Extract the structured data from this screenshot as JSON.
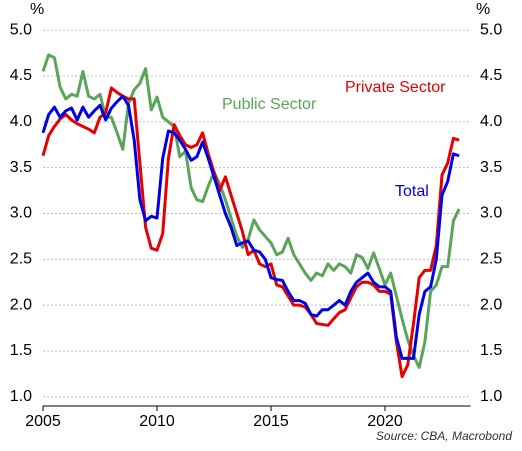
{
  "chart_data": {
    "type": "line",
    "y_label": "%",
    "y2_label": "%",
    "source": "Source: CBA, Macrobond",
    "x": [
      2005,
      2005.25,
      2005.5,
      2005.75,
      2006,
      2006.25,
      2006.5,
      2006.75,
      2007,
      2007.25,
      2007.5,
      2007.75,
      2008,
      2008.25,
      2008.5,
      2008.75,
      2009,
      2009.25,
      2009.5,
      2009.75,
      2010,
      2010.25,
      2010.5,
      2010.75,
      2011,
      2011.25,
      2011.5,
      2011.75,
      2012,
      2012.25,
      2012.5,
      2012.75,
      2013,
      2013.25,
      2013.5,
      2013.75,
      2014,
      2014.25,
      2014.5,
      2014.75,
      2015,
      2015.25,
      2015.5,
      2015.75,
      2016,
      2016.25,
      2016.5,
      2016.75,
      2017,
      2017.25,
      2017.5,
      2017.75,
      2018,
      2018.25,
      2018.5,
      2018.75,
      2019,
      2019.25,
      2019.5,
      2019.75,
      2020,
      2020.25,
      2020.5,
      2020.75,
      2021,
      2021.25,
      2021.5,
      2021.75,
      2022,
      2022.25,
      2022.5,
      2022.75,
      2023,
      2023.25
    ],
    "series": [
      {
        "name": "Public Sector",
        "color": "#5aa55a",
        "values": [
          4.55,
          4.73,
          4.7,
          4.38,
          4.25,
          4.3,
          4.28,
          4.55,
          4.28,
          4.25,
          4.3,
          4.05,
          4.05,
          3.88,
          3.7,
          4.2,
          4.35,
          4.42,
          4.58,
          4.13,
          4.27,
          4.05,
          4.0,
          3.95,
          3.62,
          3.68,
          3.28,
          3.15,
          3.13,
          3.3,
          3.45,
          3.32,
          3.15,
          2.95,
          2.75,
          2.63,
          2.72,
          2.93,
          2.82,
          2.75,
          2.68,
          2.55,
          2.58,
          2.73,
          2.55,
          2.45,
          2.35,
          2.27,
          2.35,
          2.32,
          2.45,
          2.38,
          2.45,
          2.42,
          2.35,
          2.55,
          2.52,
          2.4,
          2.57,
          2.4,
          2.22,
          2.35,
          2.1,
          1.85,
          1.62,
          1.45,
          1.32,
          1.6,
          2.15,
          2.22,
          2.42,
          2.42,
          2.92,
          3.05
        ]
      },
      {
        "name": "Private Sector",
        "color": "#e60000",
        "values": [
          3.63,
          3.85,
          3.95,
          4.03,
          4.08,
          4.02,
          3.98,
          3.95,
          3.92,
          3.88,
          4.05,
          4.1,
          4.37,
          4.32,
          4.28,
          4.25,
          4.25,
          3.55,
          2.85,
          2.62,
          2.6,
          2.78,
          3.6,
          3.97,
          3.85,
          3.75,
          3.72,
          3.75,
          3.88,
          3.65,
          3.45,
          3.25,
          3.4,
          3.2,
          3.0,
          2.8,
          2.55,
          2.6,
          2.45,
          2.42,
          2.45,
          2.22,
          2.2,
          2.1,
          2.0,
          2.0,
          1.98,
          1.9,
          1.8,
          1.79,
          1.78,
          1.85,
          1.92,
          1.95,
          2.08,
          2.2,
          2.25,
          2.25,
          2.22,
          2.15,
          2.15,
          2.12,
          1.6,
          1.22,
          1.35,
          1.8,
          2.3,
          2.38,
          2.38,
          2.65,
          3.42,
          3.55,
          3.82,
          3.8
        ]
      },
      {
        "name": "Total",
        "color": "#0000e6",
        "values": [
          3.88,
          4.08,
          4.16,
          4.05,
          4.12,
          4.15,
          4.02,
          4.16,
          4.05,
          4.12,
          4.18,
          4.02,
          4.15,
          4.22,
          4.28,
          4.18,
          3.8,
          3.15,
          2.92,
          2.97,
          2.95,
          3.6,
          3.9,
          3.88,
          3.8,
          3.7,
          3.58,
          3.62,
          3.78,
          3.6,
          3.4,
          3.2,
          3.0,
          2.85,
          2.65,
          2.68,
          2.7,
          2.6,
          2.58,
          2.5,
          2.3,
          2.28,
          2.27,
          2.15,
          2.05,
          2.05,
          2.02,
          1.9,
          1.88,
          1.95,
          1.95,
          2.0,
          2.05,
          2.0,
          2.15,
          2.25,
          2.3,
          2.35,
          2.25,
          2.2,
          2.2,
          2.15,
          1.65,
          1.42,
          1.42,
          1.42,
          1.9,
          2.15,
          2.2,
          2.5,
          3.2,
          3.35,
          3.65,
          3.63
        ]
      }
    ],
    "xlim": [
      2005,
      2023.75
    ],
    "xticks": [
      2005,
      2010,
      2015,
      2020
    ],
    "ylim": [
      0.9,
      5.1
    ],
    "yticks": [
      {
        "value": 1,
        "label": "1.0"
      },
      1.5,
      {
        "value": 2,
        "label": "2.0"
      },
      2.5,
      {
        "value": 3,
        "label": "3.0"
      },
      3.5,
      {
        "value": 4,
        "label": "4.0"
      },
      4.5,
      {
        "value": 5,
        "label": "5.0"
      }
    ],
    "y2lim": [
      0.9,
      5.1
    ],
    "y2ticks": [
      {
        "value": 1,
        "label": "1.0"
      },
      1.5,
      {
        "value": 2,
        "label": "2.0"
      },
      2.5,
      {
        "value": 3,
        "label": "3.0"
      },
      3.5,
      {
        "value": 4,
        "label": "4.0"
      },
      4.5,
      {
        "value": 5,
        "label": "5.0"
      }
    ],
    "grid": true
  }
}
